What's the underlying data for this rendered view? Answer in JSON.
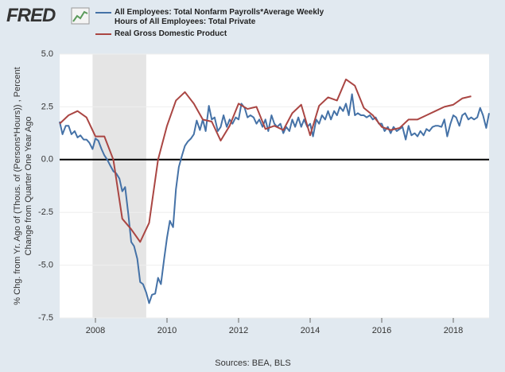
{
  "logo": "FRED",
  "chart_data": {
    "type": "line",
    "y_label": [
      "% Chg. from Yr. Ago of (Thous. of (Persons*Hours)) , Percent",
      "Change from Quarter One Year Ago"
    ],
    "source": "Sources: BEA, BLS",
    "xlim": [
      2007,
      2019
    ],
    "xticks": [
      2008,
      2010,
      2012,
      2014,
      2016,
      2018
    ],
    "ylim": [
      -7.5,
      5
    ],
    "yticks": [
      -7.5,
      {
        "value": -5,
        "label": "-5.0"
      },
      -2.5,
      {
        "value": 0,
        "label": "0.0"
      },
      2.5,
      {
        "value": 5,
        "label": "5.0"
      }
    ],
    "grid": true,
    "recession": {
      "start": 2007.92,
      "end": 2009.42
    },
    "series": [
      {
        "name": "All Employees: Total Nonfarm Payrolls*Average Weekly Hours of All Employees: Total Private",
        "color": "#4572a7",
        "x": [
          2007,
          2007.08,
          2007.17,
          2007.25,
          2007.33,
          2007.42,
          2007.5,
          2007.58,
          2007.67,
          2007.75,
          2007.83,
          2007.92,
          2008,
          2008.08,
          2008.17,
          2008.25,
          2008.33,
          2008.42,
          2008.5,
          2008.58,
          2008.67,
          2008.75,
          2008.83,
          2008.92,
          2009,
          2009.08,
          2009.17,
          2009.25,
          2009.33,
          2009.42,
          2009.5,
          2009.58,
          2009.67,
          2009.75,
          2009.83,
          2009.92,
          2010,
          2010.08,
          2010.17,
          2010.25,
          2010.33,
          2010.42,
          2010.5,
          2010.58,
          2010.67,
          2010.75,
          2010.83,
          2010.92,
          2011,
          2011.08,
          2011.17,
          2011.25,
          2011.33,
          2011.42,
          2011.5,
          2011.58,
          2011.67,
          2011.75,
          2011.83,
          2011.92,
          2012,
          2012.08,
          2012.17,
          2012.25,
          2012.33,
          2012.42,
          2012.5,
          2012.58,
          2012.67,
          2012.75,
          2012.83,
          2012.92,
          2013,
          2013.08,
          2013.17,
          2013.25,
          2013.33,
          2013.42,
          2013.5,
          2013.58,
          2013.67,
          2013.75,
          2013.83,
          2013.92,
          2014,
          2014.08,
          2014.17,
          2014.25,
          2014.33,
          2014.42,
          2014.5,
          2014.58,
          2014.67,
          2014.75,
          2014.83,
          2014.92,
          2015,
          2015.08,
          2015.17,
          2015.25,
          2015.33,
          2015.42,
          2015.5,
          2015.58,
          2015.67,
          2015.75,
          2015.83,
          2015.92,
          2016,
          2016.08,
          2016.17,
          2016.25,
          2016.33,
          2016.42,
          2016.5,
          2016.58,
          2016.67,
          2016.75,
          2016.83,
          2016.92,
          2017,
          2017.08,
          2017.17,
          2017.25,
          2017.33,
          2017.42,
          2017.5,
          2017.58,
          2017.67,
          2017.75,
          2017.83,
          2017.92,
          2018,
          2018.08,
          2018.17,
          2018.25,
          2018.33,
          2018.42,
          2018.5,
          2018.58,
          2018.67,
          2018.75,
          2018.83,
          2018.92,
          2019
        ],
        "values": [
          1.8,
          1.2,
          1.6,
          1.6,
          1.2,
          1.35,
          1.05,
          1.15,
          0.95,
          0.95,
          0.8,
          0.5,
          1.0,
          0.9,
          0.5,
          0.2,
          0.0,
          -0.3,
          -0.55,
          -0.65,
          -0.9,
          -1.5,
          -1.3,
          -2.6,
          -3.9,
          -4.1,
          -4.7,
          -5.8,
          -5.9,
          -6.3,
          -6.8,
          -6.4,
          -6.35,
          -5.6,
          -5.9,
          -4.7,
          -3.7,
          -2.9,
          -3.2,
          -1.4,
          -0.35,
          0.2,
          0.65,
          0.85,
          1.0,
          1.2,
          1.85,
          1.4,
          1.9,
          1.35,
          2.55,
          1.9,
          2.0,
          1.35,
          1.55,
          2.1,
          1.55,
          1.9,
          1.7,
          2.0,
          1.9,
          2.65,
          2.45,
          2.0,
          2.1,
          2.0,
          1.7,
          1.9,
          1.55,
          1.9,
          1.35,
          2.1,
          1.7,
          1.55,
          1.7,
          1.25,
          1.55,
          1.35,
          1.9,
          1.55,
          2.0,
          1.55,
          1.9,
          1.55,
          1.7,
          1.1,
          1.9,
          1.7,
          2.1,
          1.9,
          2.3,
          1.9,
          2.3,
          2.1,
          2.5,
          2.3,
          2.65,
          2.1,
          3.1,
          2.1,
          2.2,
          2.1,
          2.1,
          2.0,
          2.1,
          1.9,
          2.0,
          1.7,
          1.7,
          1.35,
          1.55,
          1.25,
          1.55,
          1.35,
          1.45,
          1.55,
          0.95,
          1.6,
          1.15,
          1.25,
          1.1,
          1.35,
          1.15,
          1.45,
          1.35,
          1.55,
          1.6,
          1.6,
          1.55,
          1.9,
          1.1,
          1.7,
          2.1,
          2.0,
          1.6,
          2.1,
          2.2,
          1.9,
          2.0,
          1.9,
          2.0,
          2.45,
          2.1,
          1.5,
          2.2
        ]
      },
      {
        "name": "Real Gross Domestic Product",
        "color": "#aa4643",
        "x": [
          2007,
          2007.25,
          2007.5,
          2007.75,
          2008,
          2008.25,
          2008.5,
          2008.75,
          2009,
          2009.25,
          2009.5,
          2009.75,
          2010,
          2010.25,
          2010.5,
          2010.75,
          2011,
          2011.25,
          2011.5,
          2011.75,
          2012,
          2012.25,
          2012.5,
          2012.75,
          2013,
          2013.25,
          2013.5,
          2013.75,
          2014,
          2014.25,
          2014.5,
          2014.75,
          2015,
          2015.25,
          2015.5,
          2015.75,
          2016,
          2016.25,
          2016.5,
          2016.75,
          2017,
          2017.25,
          2017.5,
          2017.75,
          2018,
          2018.25,
          2018.5
        ],
        "values": [
          1.7,
          2.1,
          2.3,
          2.0,
          1.1,
          1.1,
          0.0,
          -2.8,
          -3.3,
          -3.9,
          -3.0,
          0.0,
          1.6,
          2.8,
          3.2,
          2.65,
          1.9,
          1.8,
          0.9,
          1.6,
          2.65,
          2.4,
          2.5,
          1.45,
          1.6,
          1.4,
          2.2,
          2.6,
          1.15,
          2.55,
          2.95,
          2.8,
          3.8,
          3.5,
          2.45,
          2.1,
          1.55,
          1.4,
          1.5,
          1.9,
          1.9,
          2.1,
          2.3,
          2.5,
          2.6,
          2.9,
          3.0
        ]
      }
    ]
  }
}
